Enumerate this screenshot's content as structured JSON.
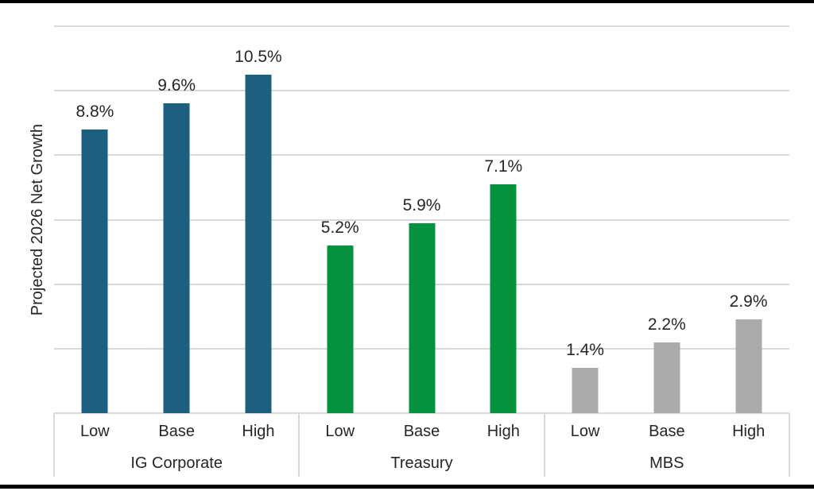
{
  "figure": {
    "background_color": "#FFFFFF",
    "top_rule_color": "#000000",
    "bottom_rule_color": "#000000"
  },
  "chart_data": {
    "type": "bar",
    "title": "",
    "xlabel": "",
    "ylabel": "Projected 2026 Net Growth",
    "ylim": [
      0,
      12
    ],
    "gridline_interval_pct": 2,
    "grid": true,
    "legend_position": "none",
    "gridline_color": "#D9D9D9",
    "label_text_color": "#262626",
    "categories_per_group": [
      "Low",
      "Base",
      "High"
    ],
    "groups": [
      {
        "label": "IG Corporate",
        "color": "#1D5F7E",
        "categories": [
          "Low",
          "Base",
          "High"
        ],
        "values": [
          8.8,
          9.6,
          10.5
        ],
        "value_labels": [
          "8.8%",
          "9.6%",
          "10.5%"
        ]
      },
      {
        "label": "Treasury",
        "color": "#05913E",
        "categories": [
          "Low",
          "Base",
          "High"
        ],
        "values": [
          5.2,
          5.9,
          7.1
        ],
        "value_labels": [
          "5.2%",
          "5.9%",
          "7.1%"
        ]
      },
      {
        "label": "MBS",
        "color": "#ABABAB",
        "categories": [
          "Low",
          "Base",
          "High"
        ],
        "values": [
          1.4,
          2.2,
          2.9
        ],
        "value_labels": [
          "1.4%",
          "2.2%",
          "2.9%"
        ]
      }
    ]
  }
}
